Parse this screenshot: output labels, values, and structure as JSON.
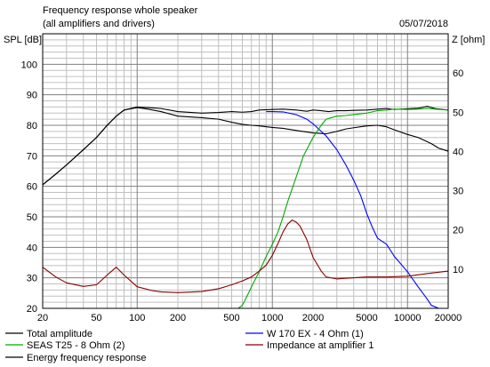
{
  "chart_data": {
    "type": "line",
    "title": "Frequency response whole speaker",
    "subtitle": "(all amplifiers and drivers)",
    "date": "05/07/2018",
    "ylabel": "SPL [dB]",
    "y2label": "Z [ohm]",
    "x_scale": "log",
    "xlim": [
      20,
      20000
    ],
    "ylim": [
      20,
      110
    ],
    "y2lim": [
      0,
      70
    ],
    "grid": true,
    "x_ticks": [
      20,
      50,
      100,
      200,
      500,
      1000,
      2000,
      5000,
      10000,
      20000
    ],
    "x_tick_labels": [
      "20",
      "50",
      "100",
      "200",
      "500",
      "1000",
      "2000",
      "5000",
      "10000",
      "20000"
    ],
    "y_ticks": [
      20,
      30,
      40,
      50,
      60,
      70,
      80,
      90,
      100
    ],
    "y_tick_labels": [
      "20",
      "30",
      "40",
      "50",
      "60",
      "70",
      "80",
      "90",
      "100"
    ],
    "y2_ticks": [
      10,
      20,
      30,
      40,
      50,
      60
    ],
    "y2_tick_labels": [
      "10",
      "20",
      "30",
      "40",
      "50",
      "60"
    ],
    "series": [
      {
        "name": "Total amplitude",
        "axis": "left",
        "color": "#000000",
        "x": [
          20,
          25,
          30,
          40,
          50,
          60,
          70,
          80,
          100,
          120,
          150,
          200,
          300,
          400,
          500,
          600,
          700,
          800,
          1000,
          1200,
          1500,
          1800,
          2000,
          2300,
          2600,
          3000,
          3500,
          4000,
          5000,
          6000,
          7000,
          8000,
          10000,
          12000,
          14000,
          16000,
          20000
        ],
        "y": [
          60.5,
          64,
          67,
          72,
          76,
          80,
          83,
          85,
          86,
          85.8,
          85.5,
          84.5,
          84,
          84.2,
          84.5,
          84.3,
          84.5,
          85,
          85.2,
          85.3,
          85,
          84.6,
          85,
          84.8,
          84.5,
          84.8,
          84.8,
          84.9,
          85,
          85.3,
          85.5,
          85.2,
          85.4,
          85.6,
          86.2,
          85.5,
          85
        ]
      },
      {
        "name": "Energy frequency response",
        "axis": "left",
        "color": "#000000",
        "x": [
          20,
          25,
          30,
          40,
          50,
          60,
          70,
          80,
          100,
          120,
          150,
          200,
          300,
          400,
          500,
          600,
          700,
          800,
          1000,
          1200,
          1500,
          2000,
          2500,
          3000,
          3500,
          4000,
          5000,
          6000,
          7000,
          8000,
          10000,
          12000,
          15000,
          17000,
          20000
        ],
        "y": [
          60.5,
          64,
          67,
          72,
          76,
          80,
          83,
          85,
          85.8,
          85.3,
          84.5,
          83,
          82.5,
          82,
          81,
          80.3,
          80,
          79.8,
          79.3,
          79,
          78.3,
          77.5,
          77.2,
          78,
          78.8,
          79.2,
          79.8,
          80,
          79.5,
          78.5,
          77,
          76,
          74,
          72.5,
          71.5
        ]
      },
      {
        "name": "W 170 EX - 4 Ohm  (1)",
        "axis": "left",
        "color": "#0000ff",
        "x": [
          900,
          1000,
          1200,
          1500,
          1800,
          2000,
          2500,
          3000,
          3500,
          4000,
          4500,
          5000,
          5500,
          6000,
          7000,
          8000,
          10000,
          12000,
          14000,
          15000,
          17000,
          20000
        ],
        "y": [
          84.5,
          84.5,
          84.4,
          83.5,
          82,
          80.5,
          76.5,
          72,
          67,
          62,
          57,
          51,
          46.5,
          43,
          41,
          37,
          32,
          27,
          23,
          21,
          20,
          20
        ]
      },
      {
        "name": "SEAS T25 - 8 Ohm    (2)",
        "axis": "left",
        "color": "#00aa00",
        "x": [
          20,
          400,
          500,
          560,
          600,
          650,
          700,
          800,
          900,
          1000,
          1100,
          1200,
          1300,
          1500,
          1700,
          2000,
          2300,
          2500,
          3000,
          3500,
          4000,
          5000,
          6000,
          7000,
          8000,
          10000,
          12000,
          14000,
          16000,
          20000
        ],
        "y": [
          20,
          20,
          20,
          20,
          21,
          24,
          27,
          32,
          37,
          41,
          45,
          50,
          55,
          63,
          70,
          76,
          80,
          82,
          83,
          83.2,
          83.5,
          84,
          84.8,
          85,
          85.3,
          85.2,
          85.3,
          85.5,
          85.3,
          85
        ]
      },
      {
        "name": "Impedance at amplifier 1",
        "axis": "right",
        "color": "#880000",
        "x": [
          20,
          25,
          30,
          40,
          50,
          60,
          70,
          80,
          100,
          130,
          150,
          200,
          300,
          400,
          500,
          600,
          700,
          800,
          900,
          1000,
          1100,
          1200,
          1300,
          1400,
          1500,
          1600,
          1800,
          2000,
          2300,
          2500,
          3000,
          4000,
          5000,
          7000,
          10000,
          15000,
          20000
        ],
        "y": [
          10.5,
          8,
          6.5,
          5.6,
          6,
          8.5,
          10.5,
          8.5,
          5.5,
          4.5,
          4.2,
          4,
          4.3,
          5,
          6,
          7,
          8,
          9.5,
          11,
          13.5,
          16.5,
          19.5,
          21.5,
          22.5,
          22,
          21,
          17.5,
          13,
          9.5,
          8,
          7.5,
          7.8,
          8,
          8,
          8.2,
          9,
          9.5
        ]
      }
    ]
  }
}
